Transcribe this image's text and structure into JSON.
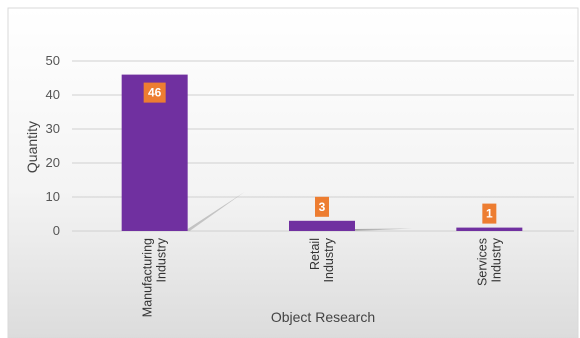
{
  "chart_data": {
    "type": "bar",
    "title": "",
    "xlabel": "Object Research",
    "ylabel": "Quantity",
    "categories": [
      [
        "Manufacturing",
        "Industry"
      ],
      [
        "Retail",
        "Industry"
      ],
      [
        "Services",
        "Industry"
      ]
    ],
    "values": [
      46,
      3,
      1
    ],
    "ylim": [
      0,
      50
    ],
    "yticks": [
      0,
      10,
      20,
      30,
      40,
      50
    ],
    "grid": true,
    "legend": "none",
    "bar_color": "#7030a0",
    "label_box_color": "#ed7d31"
  }
}
